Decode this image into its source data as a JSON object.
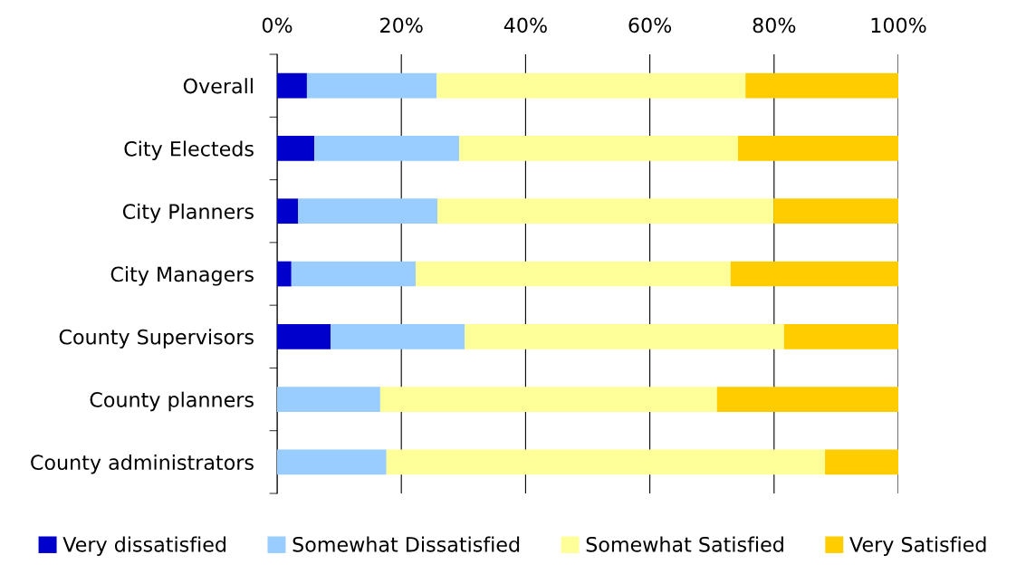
{
  "chart_data": {
    "type": "bar",
    "orientation": "horizontal",
    "stacked": true,
    "categories": [
      "Overall",
      "City Electeds",
      "City Planners",
      "City Managers",
      "County Supervisors",
      "County planners",
      "County administrators"
    ],
    "series": [
      {
        "name": "Very dissatisfied",
        "color": "#0000cc",
        "values": [
          4.8,
          6.0,
          3.4,
          2.3,
          8.6,
          0,
          0
        ]
      },
      {
        "name": "Somewhat Dissatisfied",
        "color": "#99ccff",
        "values": [
          20.9,
          23.3,
          22.4,
          20.0,
          21.6,
          16.6,
          17.6
        ]
      },
      {
        "name": "Somewhat Satisfied",
        "color": "#ffff99",
        "values": [
          49.7,
          44.9,
          54.1,
          50.7,
          51.4,
          54.2,
          70.6
        ]
      },
      {
        "name": "Very Satisfied",
        "color": "#ffcc00",
        "values": [
          24.6,
          25.8,
          20.1,
          27.0,
          18.4,
          29.2,
          11.8
        ]
      }
    ],
    "xlim": [
      0,
      100
    ],
    "xticks": [
      {
        "value": 0,
        "label": "0%"
      },
      {
        "value": 20,
        "label": "20%"
      },
      {
        "value": 40,
        "label": "40%"
      },
      {
        "value": 60,
        "label": "60%"
      },
      {
        "value": 80,
        "label": "80%"
      },
      {
        "value": 100,
        "label": "100%"
      }
    ],
    "grid": "x",
    "legend": "bottom"
  }
}
